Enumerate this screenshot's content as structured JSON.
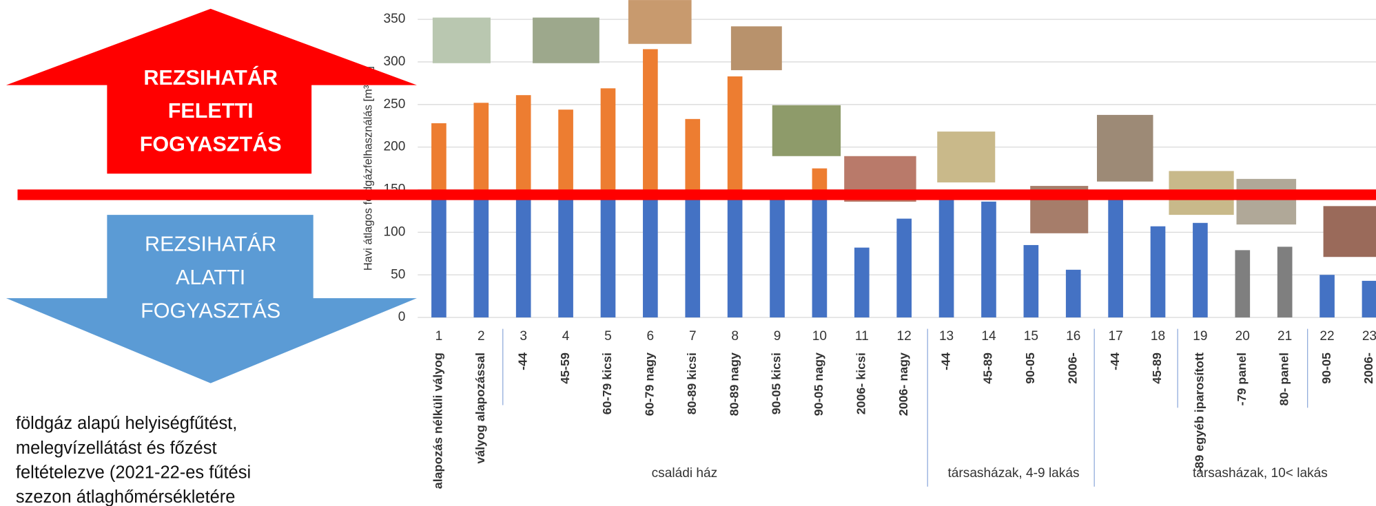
{
  "slide": {
    "up_arrow_lines": [
      "REZSIHATÁR",
      "FELETTI",
      "FOGYASZTÁS"
    ],
    "down_arrow_lines": [
      "REZSIHATÁR",
      "ALATTI",
      "FOGYASZTÁS"
    ],
    "note_lines": [
      "földgáz alapú helyiségfűtést,",
      "melegvízellátást és főzést",
      "feltételezve (2021-22-es fűtési",
      "szezon átlaghőmérsékletére"
    ]
  },
  "chart_data": {
    "type": "bar",
    "y_label": "Havi átlagos földgázfelhasználás [m³/hó]",
    "categories": [
      "1",
      "2",
      "3",
      "4",
      "5",
      "6",
      "7",
      "8",
      "9",
      "10",
      "11",
      "12",
      "13",
      "14",
      "15",
      "16",
      "17",
      "18",
      "19",
      "20",
      "21",
      "22",
      "23"
    ],
    "sublabels": [
      "alapozás nélküli vályog",
      "vályog alapozással",
      "-44",
      "45-59",
      "60-79 kicsi",
      "60-79 nagy",
      "80-89 kicsi",
      "80-89 nagy",
      "90-05 kicsi",
      "90-05 nagy",
      "2006- kicsi",
      "2006- nagy",
      "-44",
      "45-89",
      "90-05",
      "2006-",
      "-44",
      "45-89",
      "-89 egyéb iparosított",
      "-79 panel",
      "80- panel",
      "90-05",
      "2006-"
    ],
    "groups": [
      "családi ház",
      "társasházak, 4-9 lakás",
      "társasházak, 10< lakás"
    ],
    "values": [
      228,
      252,
      261,
      244,
      269,
      315,
      233,
      283,
      150,
      175,
      82,
      116,
      150,
      136,
      85,
      56,
      150,
      107,
      111,
      79,
      83,
      50,
      43
    ],
    "colors": [
      "#4472c4",
      "#4472c4",
      "#4472c4",
      "#4472c4",
      "#4472c4",
      "#4472c4",
      "#4472c4",
      "#4472c4",
      "#4472c4",
      "#4472c4",
      "#4472c4",
      "#4472c4",
      "#4472c4",
      "#4472c4",
      "#4472c4",
      "#4472c4",
      "#4472c4",
      "#4472c4",
      "#4472c4",
      "#7f7f7f",
      "#7f7f7f",
      "#4472c4",
      "#4472c4"
    ],
    "threshold": 144,
    "above_color": "#ed7d31",
    "threshold_color": "#ff0000",
    "ylim": [
      0,
      350
    ],
    "yticks": [
      0,
      50,
      100,
      150,
      200,
      250,
      300,
      350
    ],
    "grid": true
  }
}
